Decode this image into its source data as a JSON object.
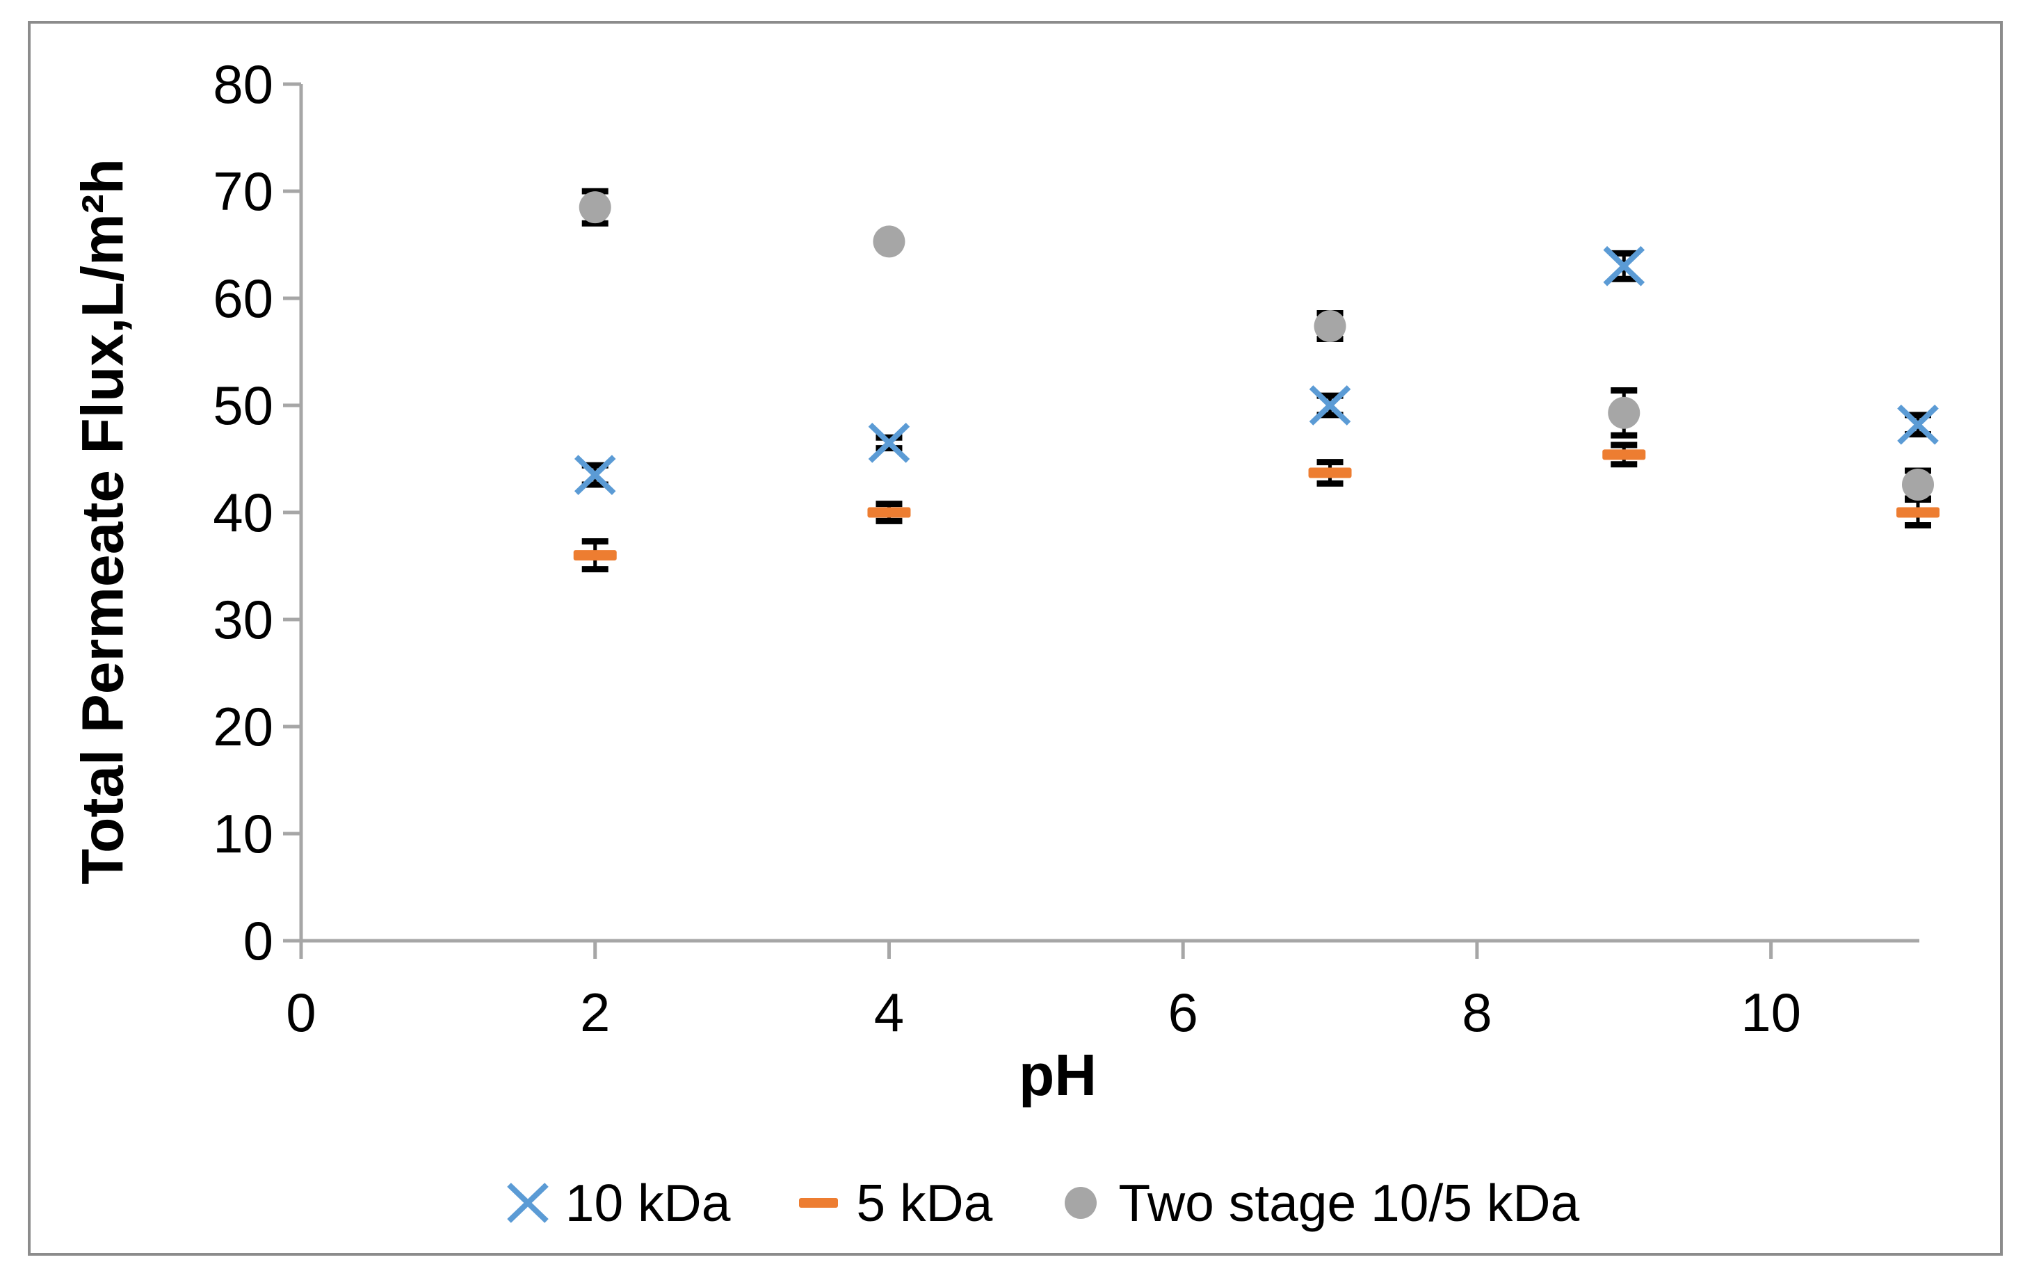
{
  "figure": {
    "background": "#FFFFFF",
    "border_color": "#8C8C8C"
  },
  "chart_data": {
    "type": "scatter",
    "title": "",
    "x_axis": {
      "label": "pH",
      "min": 0,
      "max": 11,
      "ticks": [
        0,
        2,
        4,
        6,
        8,
        10
      ]
    },
    "y_axis": {
      "label": "Total Permeate Flux,L/m²h",
      "min": 0,
      "max": 80,
      "ticks": [
        0,
        10,
        20,
        30,
        40,
        50,
        60,
        70,
        80
      ]
    },
    "grid": "off",
    "legend_position": "bottom-center",
    "axis_color": "#A6A6A6",
    "tick_label_color": "#000000",
    "error_bar_color": "#000000",
    "series": [
      {
        "name": "10 kDa",
        "marker": "x",
        "color": "#5B9BD5",
        "points": [
          {
            "x": 2,
            "y": 43.5,
            "err": 0.9
          },
          {
            "x": 4,
            "y": 46.5,
            "err": 0.5
          },
          {
            "x": 7,
            "y": 50.0,
            "err": 0.9
          },
          {
            "x": 9,
            "y": 63.0,
            "err": 1.2
          },
          {
            "x": 11,
            "y": 48.2,
            "err": 0.9
          }
        ]
      },
      {
        "name": "5 kDa",
        "marker": "dash",
        "color": "#ED7D31",
        "points": [
          {
            "x": 2,
            "y": 36.0,
            "err": 1.3
          },
          {
            "x": 4,
            "y": 40.0,
            "err": 0.8
          },
          {
            "x": 7,
            "y": 43.7,
            "err": 1.0
          },
          {
            "x": 9,
            "y": 45.4,
            "err": 0.9
          },
          {
            "x": 11,
            "y": 40.0,
            "err": 1.2
          }
        ]
      },
      {
        "name": "Two stage 10/5 kDa",
        "marker": "circle",
        "color": "#A6A6A6",
        "points": [
          {
            "x": 2,
            "y": 68.5,
            "err": 1.5
          },
          {
            "x": 4,
            "y": 65.3,
            "err": 0.5
          },
          {
            "x": 7,
            "y": 57.4,
            "err": 1.2
          },
          {
            "x": 9,
            "y": 49.3,
            "err": 2.1
          },
          {
            "x": 11,
            "y": 42.6,
            "err": 1.3
          }
        ]
      }
    ]
  }
}
